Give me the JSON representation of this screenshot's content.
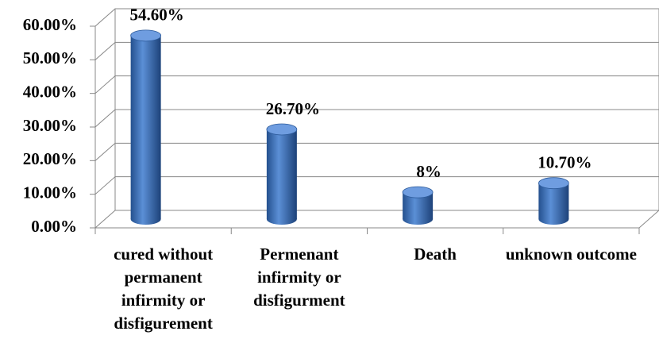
{
  "chart_data": {
    "type": "bar3d",
    "categories": [
      "cured without permanent infirmity or disfigurement",
      "Permenant infirmity or disfigurment",
      "Death",
      "unknown outcome"
    ],
    "values": [
      54.6,
      26.7,
      8,
      10.7
    ],
    "value_labels": [
      "54.60%",
      "26.70%",
      "8%",
      "10.70%"
    ],
    "color": "#3b6fb6",
    "ylim": [
      0,
      60
    ],
    "yticks": [
      {
        "value": 0,
        "label": "0.00%"
      },
      {
        "value": 10,
        "label": "10.00%"
      },
      {
        "value": 20,
        "label": "20.00%"
      },
      {
        "value": 30,
        "label": "30.00%"
      },
      {
        "value": 40,
        "label": "40.00%"
      },
      {
        "value": 50,
        "label": "50.00%"
      },
      {
        "value": 60,
        "label": "60.00%"
      }
    ],
    "grid": true
  }
}
